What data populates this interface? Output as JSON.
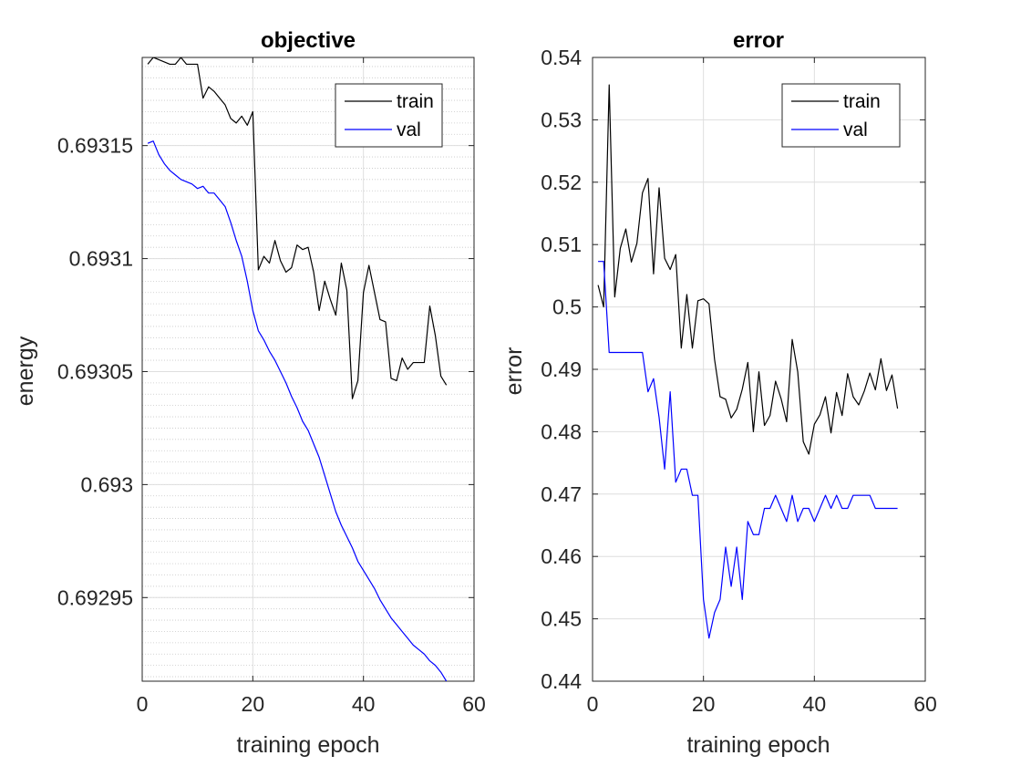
{
  "chart_data": [
    {
      "type": "line",
      "title": "objective",
      "xlabel": "training epoch",
      "ylabel": "energy",
      "xlim": [
        0,
        60
      ],
      "ylim": [
        0.692913,
        0.693189
      ],
      "xticks": [
        0,
        20,
        40,
        60
      ],
      "xtick_labels": [
        "0",
        "20",
        "40",
        "60"
      ],
      "yticks": [
        0.69295,
        0.693,
        0.69305,
        0.6931,
        0.69315
      ],
      "ytick_labels": [
        "0.69295",
        "0.693",
        "0.69305",
        "0.6931",
        "0.69315"
      ],
      "grid": true,
      "minor_grid": true,
      "legend": "top-right",
      "series": [
        {
          "name": "train",
          "color": "#000000",
          "x": [
            1,
            2,
            3,
            4,
            5,
            6,
            7,
            8,
            9,
            10,
            11,
            12,
            13,
            14,
            15,
            16,
            17,
            18,
            19,
            20,
            21,
            22,
            23,
            24,
            25,
            26,
            27,
            28,
            29,
            30,
            31,
            32,
            33,
            34,
            35,
            36,
            37,
            38,
            39,
            40,
            41,
            42,
            43,
            44,
            45,
            46,
            47,
            48,
            49,
            50,
            51,
            52,
            53,
            54,
            55
          ],
          "values": [
            0.693186,
            0.693189,
            0.693188,
            0.693187,
            0.693186,
            0.693186,
            0.693189,
            0.693186,
            0.693186,
            0.693186,
            0.693171,
            0.693176,
            0.693174,
            0.693171,
            0.693168,
            0.693162,
            0.69316,
            0.693163,
            0.693159,
            0.693165,
            0.693095,
            0.693101,
            0.693098,
            0.693108,
            0.693099,
            0.693094,
            0.693096,
            0.693106,
            0.693104,
            0.693105,
            0.693094,
            0.693077,
            0.69309,
            0.693082,
            0.693075,
            0.693098,
            0.693086,
            0.693038,
            0.693046,
            0.693085,
            0.693097,
            0.693085,
            0.693073,
            0.693072,
            0.693047,
            0.693046,
            0.693056,
            0.693051,
            0.693054,
            0.693054,
            0.693054,
            0.693079,
            0.693066,
            0.693048,
            0.693044
          ]
        },
        {
          "name": "val",
          "color": "#0000ff",
          "x": [
            1,
            2,
            3,
            4,
            5,
            6,
            7,
            8,
            9,
            10,
            11,
            12,
            13,
            14,
            15,
            16,
            17,
            18,
            19,
            20,
            21,
            22,
            23,
            24,
            25,
            26,
            27,
            28,
            29,
            30,
            31,
            32,
            33,
            34,
            35,
            36,
            37,
            38,
            39,
            40,
            41,
            42,
            43,
            44,
            45,
            46,
            47,
            48,
            49,
            50,
            51,
            52,
            53,
            54,
            55
          ],
          "values": [
            0.693151,
            0.693152,
            0.693146,
            0.693142,
            0.693139,
            0.693137,
            0.693135,
            0.693134,
            0.693133,
            0.693131,
            0.693132,
            0.693129,
            0.693129,
            0.693126,
            0.693123,
            0.693116,
            0.693108,
            0.693101,
            0.69309,
            0.693077,
            0.693068,
            0.693064,
            0.693059,
            0.693055,
            0.69305,
            0.693045,
            0.693039,
            0.693034,
            0.693028,
            0.693024,
            0.693018,
            0.693012,
            0.693004,
            0.692996,
            0.692988,
            0.692982,
            0.692977,
            0.692972,
            0.692966,
            0.692962,
            0.692958,
            0.692954,
            0.692949,
            0.692945,
            0.692941,
            0.692938,
            0.692935,
            0.692932,
            0.692929,
            0.692927,
            0.692925,
            0.692922,
            0.69292,
            0.692917,
            0.692913
          ]
        }
      ]
    },
    {
      "type": "line",
      "title": "error",
      "xlabel": "training epoch",
      "ylabel": "error",
      "xlim": [
        0,
        60
      ],
      "ylim": [
        0.44,
        0.54
      ],
      "xticks": [
        0,
        20,
        40,
        60
      ],
      "xtick_labels": [
        "0",
        "20",
        "40",
        "60"
      ],
      "yticks": [
        0.44,
        0.45,
        0.46,
        0.47,
        0.48,
        0.49,
        0.5,
        0.51,
        0.52,
        0.53,
        0.54
      ],
      "ytick_labels": [
        "0.44",
        "0.45",
        "0.46",
        "0.47",
        "0.48",
        "0.49",
        "0.5",
        "0.51",
        "0.52",
        "0.53",
        "0.54"
      ],
      "grid": true,
      "minor_grid": false,
      "legend": "top-right",
      "series": [
        {
          "name": "train",
          "color": "#000000",
          "x": [
            1,
            2,
            3,
            4,
            5,
            6,
            7,
            8,
            9,
            10,
            11,
            12,
            13,
            14,
            15,
            16,
            17,
            18,
            19,
            20,
            21,
            22,
            23,
            24,
            25,
            26,
            27,
            28,
            29,
            30,
            31,
            32,
            33,
            34,
            35,
            36,
            37,
            38,
            39,
            40,
            41,
            42,
            43,
            44,
            45,
            46,
            47,
            48,
            49,
            50,
            51,
            52,
            53,
            54,
            55
          ],
          "values": [
            0.5035,
            0.5,
            0.5356,
            0.5016,
            0.5094,
            0.5125,
            0.5072,
            0.5102,
            0.5183,
            0.5206,
            0.5053,
            0.5191,
            0.5078,
            0.506,
            0.5084,
            0.4934,
            0.502,
            0.4934,
            0.501,
            0.5013,
            0.5005,
            0.4916,
            0.4856,
            0.4852,
            0.4822,
            0.4836,
            0.4868,
            0.4911,
            0.48,
            0.4896,
            0.481,
            0.4826,
            0.4881,
            0.4853,
            0.4816,
            0.4948,
            0.4896,
            0.4784,
            0.4764,
            0.4812,
            0.4827,
            0.4856,
            0.4798,
            0.4863,
            0.4826,
            0.4893,
            0.4856,
            0.4843,
            0.4865,
            0.4894,
            0.4867,
            0.4917,
            0.4866,
            0.4891,
            0.4837
          ]
        },
        {
          "name": "val",
          "color": "#0000ff",
          "x": [
            1,
            2,
            3,
            4,
            5,
            6,
            7,
            8,
            9,
            10,
            11,
            12,
            13,
            14,
            15,
            16,
            17,
            18,
            19,
            20,
            21,
            22,
            23,
            24,
            25,
            26,
            27,
            28,
            29,
            30,
            31,
            32,
            33,
            34,
            35,
            36,
            37,
            38,
            39,
            40,
            41,
            42,
            43,
            44,
            45,
            46,
            47,
            48,
            49,
            50,
            51,
            52,
            53,
            54,
            55
          ],
          "values": [
            0.5073,
            0.5073,
            0.4927,
            0.4927,
            0.4927,
            0.4927,
            0.4927,
            0.4927,
            0.4927,
            0.4864,
            0.4885,
            0.4823,
            0.474,
            0.4864,
            0.4719,
            0.474,
            0.474,
            0.4698,
            0.4698,
            0.4531,
            0.4469,
            0.451,
            0.4531,
            0.4615,
            0.4552,
            0.4615,
            0.4531,
            0.4656,
            0.4635,
            0.4635,
            0.4677,
            0.4677,
            0.4698,
            0.4677,
            0.4656,
            0.4698,
            0.4656,
            0.4677,
            0.4677,
            0.4656,
            0.4677,
            0.4698,
            0.4677,
            0.4698,
            0.4677,
            0.4677,
            0.4698,
            0.4698,
            0.4698,
            0.4698,
            0.4677,
            0.4677,
            0.4677,
            0.4677,
            0.4677
          ]
        }
      ]
    }
  ]
}
